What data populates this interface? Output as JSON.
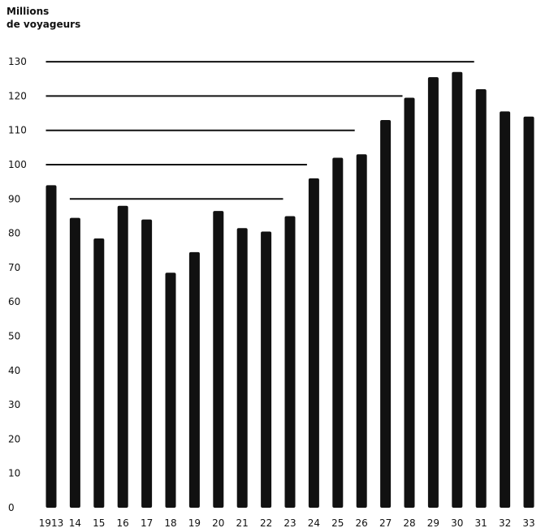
{
  "chart_data": {
    "type": "bar",
    "ylabel_lines": [
      "Millions",
      "de voyageurs"
    ],
    "categories": [
      "1913",
      "14",
      "15",
      "16",
      "17",
      "18",
      "19",
      "20",
      "21",
      "22",
      "23",
      "24",
      "25",
      "26",
      "27",
      "28",
      "29",
      "30",
      "31",
      "32",
      "33"
    ],
    "values": [
      94,
      84.5,
      78.5,
      88,
      84,
      68.5,
      74.5,
      86.5,
      81.5,
      80.5,
      85,
      96,
      102,
      103,
      113,
      119.5,
      125.5,
      127,
      122,
      115.5,
      114
    ],
    "yticks": [
      0,
      10,
      20,
      30,
      40,
      50,
      60,
      70,
      80,
      90,
      100,
      110,
      120,
      130
    ],
    "ylim": [
      0,
      130
    ],
    "reference_lines": [
      {
        "value": 130,
        "from": "1913",
        "to": "31"
      },
      {
        "value": 120,
        "from": "1913",
        "to": "28"
      },
      {
        "value": 110,
        "from": "1913",
        "to": "26"
      },
      {
        "value": 100,
        "from": "1913",
        "to": "24"
      },
      {
        "value": 90,
        "from": "14",
        "to": "23"
      }
    ],
    "grid": false,
    "colors": {
      "bars": "#111111",
      "lines": "#111111",
      "text": "#111111"
    }
  }
}
